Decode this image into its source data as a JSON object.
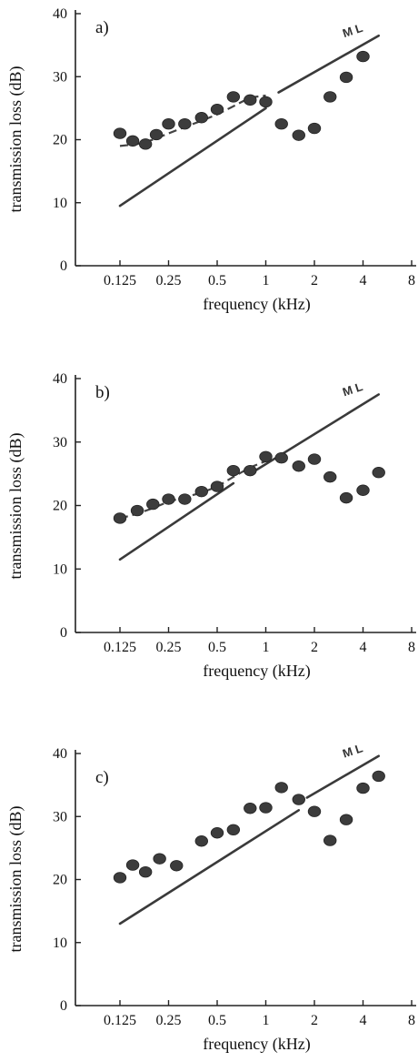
{
  "chart_data": [
    {
      "panel": "a)",
      "type": "scatter",
      "xlabel": "frequency (kHz)",
      "ylabel": "transmission loss (dB)",
      "xscale": "log2",
      "xticks": [
        "0.125",
        "0.25",
        "0.5",
        "1",
        "2",
        "4",
        "8"
      ],
      "xtick_values": [
        0.125,
        0.25,
        0.5,
        1,
        2,
        4,
        8
      ],
      "yticks": [
        "0",
        "10",
        "20",
        "30",
        "40"
      ],
      "ylim": [
        0,
        40
      ],
      "points": [
        [
          0.125,
          21
        ],
        [
          0.15,
          19.8
        ],
        [
          0.18,
          19.3
        ],
        [
          0.21,
          20.8
        ],
        [
          0.25,
          22.5
        ],
        [
          0.315,
          22.5
        ],
        [
          0.4,
          23.5
        ],
        [
          0.5,
          24.8
        ],
        [
          0.63,
          26.8
        ],
        [
          0.8,
          26.3
        ],
        [
          1.0,
          26
        ],
        [
          1.25,
          22.5
        ],
        [
          1.6,
          20.7
        ],
        [
          2.0,
          21.8
        ],
        [
          2.5,
          26.8
        ],
        [
          3.15,
          29.9
        ],
        [
          4.0,
          33.2
        ]
      ],
      "dashed_fit": [
        [
          0.125,
          19
        ],
        [
          0.16,
          19.3
        ],
        [
          0.2,
          20
        ],
        [
          0.25,
          21
        ],
        [
          0.315,
          22
        ],
        [
          0.4,
          23
        ],
        [
          0.5,
          24
        ],
        [
          0.63,
          25.3
        ],
        [
          0.8,
          26.7
        ],
        [
          1.0,
          27
        ]
      ],
      "mass_law": {
        "label": "M L",
        "segments": [
          [
            [
              0.125,
              9.5
            ],
            [
              1.0,
              25
            ]
          ],
          [
            [
              1.2,
              27.5
            ],
            [
              5.0,
              36.5
            ]
          ]
        ]
      }
    },
    {
      "panel": "b)",
      "type": "scatter",
      "xlabel": "frequency (kHz)",
      "ylabel": "transmission loss (dB)",
      "xscale": "log2",
      "xticks": [
        "0.125",
        "0.25",
        "0.5",
        "1",
        "2",
        "4",
        "8"
      ],
      "xtick_values": [
        0.125,
        0.25,
        0.5,
        1,
        2,
        4,
        8
      ],
      "yticks": [
        "0",
        "10",
        "20",
        "30",
        "40"
      ],
      "ylim": [
        0,
        40
      ],
      "points": [
        [
          0.125,
          18
        ],
        [
          0.16,
          19.2
        ],
        [
          0.2,
          20.2
        ],
        [
          0.25,
          21
        ],
        [
          0.315,
          21
        ],
        [
          0.4,
          22.2
        ],
        [
          0.5,
          23
        ],
        [
          0.63,
          25.5
        ],
        [
          0.8,
          25.5
        ],
        [
          1.0,
          27.7
        ],
        [
          1.25,
          27.5
        ],
        [
          1.6,
          26.2
        ],
        [
          2.0,
          27.3
        ],
        [
          2.5,
          24.5
        ],
        [
          3.15,
          21.2
        ],
        [
          4.0,
          22.4
        ],
        [
          5.0,
          25.2
        ]
      ],
      "dashed_fit": [
        [
          0.125,
          18
        ],
        [
          0.16,
          18.7
        ],
        [
          0.2,
          19.6
        ],
        [
          0.25,
          20.6
        ],
        [
          0.315,
          21.3
        ],
        [
          0.4,
          22
        ],
        [
          0.5,
          23
        ],
        [
          0.63,
          24.5
        ],
        [
          0.8,
          26
        ],
        [
          1.0,
          27
        ]
      ],
      "mass_law": {
        "label": "M L",
        "segments": [
          [
            [
              0.125,
              11.5
            ],
            [
              0.63,
              23.5
            ]
          ],
          [
            [
              0.8,
              25
            ],
            [
              5.0,
              37.5
            ]
          ]
        ]
      }
    },
    {
      "panel": "c)",
      "type": "scatter",
      "xlabel": "frequency (kHz)",
      "ylabel": "transmission loss (dB)",
      "xscale": "log2",
      "xticks": [
        "0.125",
        "0.25",
        "0.5",
        "1",
        "2",
        "4",
        "8"
      ],
      "xtick_values": [
        0.125,
        0.25,
        0.5,
        1,
        2,
        4,
        8
      ],
      "yticks": [
        "0",
        "10",
        "20",
        "30",
        "40"
      ],
      "ylim": [
        0,
        40
      ],
      "points": [
        [
          0.125,
          20.3
        ],
        [
          0.15,
          22.3
        ],
        [
          0.18,
          21.2
        ],
        [
          0.22,
          23.3
        ],
        [
          0.28,
          22.2
        ],
        [
          0.4,
          26.1
        ],
        [
          0.5,
          27.4
        ],
        [
          0.63,
          27.9
        ],
        [
          0.8,
          31.3
        ],
        [
          1.0,
          31.4
        ],
        [
          1.25,
          34.6
        ],
        [
          1.6,
          32.7
        ],
        [
          2.0,
          30.8
        ],
        [
          2.5,
          26.2
        ],
        [
          3.15,
          29.5
        ],
        [
          4.0,
          34.5
        ],
        [
          5.0,
          36.4
        ]
      ],
      "mass_law": {
        "label": "M L",
        "segments": [
          [
            [
              0.125,
              13
            ],
            [
              1.6,
              31
            ]
          ],
          [
            [
              1.8,
              33
            ],
            [
              5.0,
              39.6
            ]
          ]
        ]
      }
    }
  ]
}
